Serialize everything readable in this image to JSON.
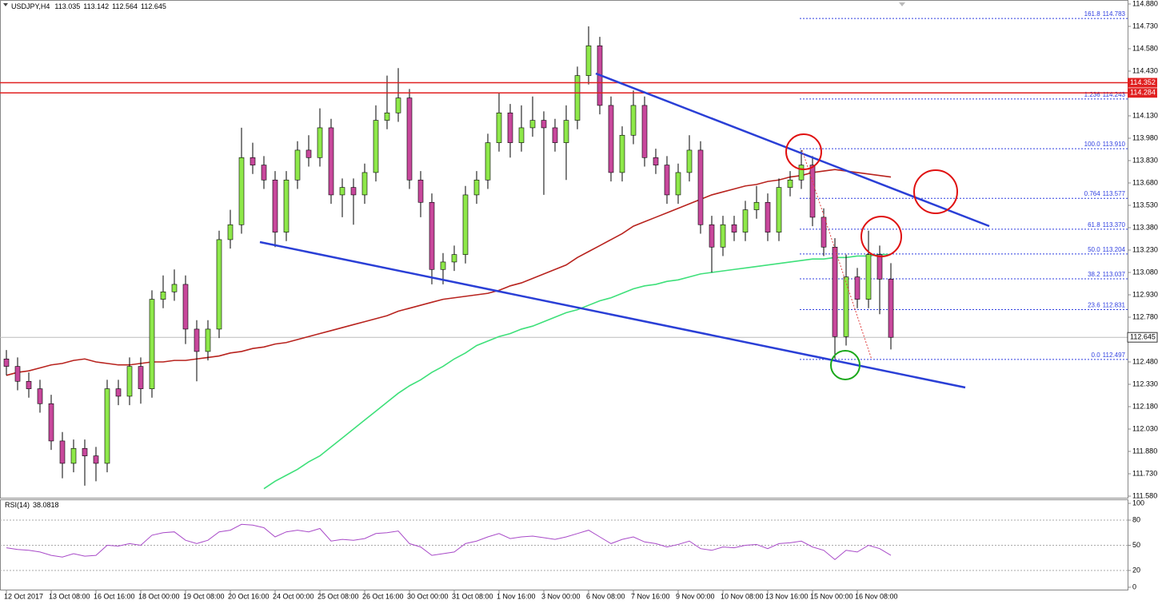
{
  "chart_data": [
    {
      "type": "candlestick",
      "symbol": "USDJPY,H4",
      "categories": [
        "12 Oct 2017",
        null,
        null,
        null,
        "13 Oct 08:00",
        null,
        null,
        null,
        "16 Oct 16:00",
        null,
        null,
        null,
        "18 Oct 00:00",
        null,
        null,
        null,
        "19 Oct 08:00",
        null,
        null,
        null,
        "20 Oct 16:00",
        null,
        null,
        null,
        "24 Oct 00:00",
        null,
        null,
        null,
        "25 Oct 08:00",
        null,
        null,
        null,
        "26 Oct 16:00",
        null,
        null,
        null,
        "30 Oct 00:00",
        null,
        null,
        null,
        "31 Oct 08:00",
        null,
        null,
        null,
        "1 Nov 16:00",
        null,
        null,
        null,
        "3 Nov 00:00",
        null,
        null,
        null,
        "6 Nov 08:00",
        null,
        null,
        null,
        "7 Nov 16:00",
        null,
        null,
        null,
        "9 Nov 00:00",
        null,
        null,
        null,
        "10 Nov 08:00",
        null,
        null,
        null,
        "13 Nov 16:00",
        null,
        null,
        null,
        "15 Nov 00:00",
        null,
        null,
        null,
        "16 Nov 08:00",
        null,
        null,
        null
      ],
      "ohlc": [
        [
          112.5,
          112.56,
          112.39,
          112.45
        ],
        [
          112.45,
          112.51,
          112.29,
          112.35
        ],
        [
          112.35,
          112.41,
          112.24,
          112.3
        ],
        [
          112.3,
          112.36,
          112.14,
          112.2
        ],
        [
          112.2,
          112.26,
          111.89,
          111.95
        ],
        [
          111.95,
          112.01,
          111.7,
          111.8
        ],
        [
          111.8,
          111.96,
          111.74,
          111.9
        ],
        [
          111.9,
          111.96,
          111.65,
          111.85
        ],
        [
          111.85,
          111.91,
          111.68,
          111.8
        ],
        [
          111.8,
          112.36,
          111.74,
          112.3
        ],
        [
          112.3,
          112.36,
          112.19,
          112.25
        ],
        [
          112.25,
          112.51,
          112.19,
          112.45
        ],
        [
          112.45,
          112.51,
          112.2,
          112.3
        ],
        [
          112.3,
          112.96,
          112.24,
          112.9
        ],
        [
          112.9,
          113.06,
          112.84,
          112.95
        ],
        [
          112.95,
          113.1,
          112.89,
          113.0
        ],
        [
          113.0,
          113.06,
          112.6,
          112.7
        ],
        [
          112.7,
          112.76,
          112.35,
          112.55
        ],
        [
          112.55,
          112.76,
          112.49,
          112.7
        ],
        [
          112.7,
          113.36,
          112.64,
          113.3
        ],
        [
          113.3,
          113.5,
          113.24,
          113.4
        ],
        [
          113.4,
          114.05,
          113.34,
          113.85
        ],
        [
          113.85,
          113.95,
          113.74,
          113.8
        ],
        [
          113.8,
          113.86,
          113.64,
          113.7
        ],
        [
          113.7,
          113.76,
          113.25,
          113.35
        ],
        [
          113.35,
          113.76,
          113.29,
          113.7
        ],
        [
          113.7,
          113.96,
          113.64,
          113.9
        ],
        [
          113.9,
          114.0,
          113.79,
          113.85
        ],
        [
          113.85,
          114.18,
          113.79,
          114.05
        ],
        [
          114.05,
          114.11,
          113.54,
          113.6
        ],
        [
          113.6,
          113.71,
          113.45,
          113.65
        ],
        [
          113.65,
          113.71,
          113.4,
          113.6
        ],
        [
          113.6,
          113.81,
          113.54,
          113.75
        ],
        [
          113.75,
          114.2,
          113.69,
          114.1
        ],
        [
          114.1,
          114.4,
          114.04,
          114.15
        ],
        [
          114.15,
          114.45,
          114.09,
          114.25
        ],
        [
          114.25,
          114.31,
          113.64,
          113.7
        ],
        [
          113.7,
          113.76,
          113.45,
          113.55
        ],
        [
          113.55,
          113.61,
          113.0,
          113.1
        ],
        [
          113.1,
          113.21,
          113.0,
          113.15
        ],
        [
          113.15,
          113.26,
          113.09,
          113.2
        ],
        [
          113.2,
          113.66,
          113.14,
          113.6
        ],
        [
          113.6,
          113.76,
          113.54,
          113.7
        ],
        [
          113.7,
          114.01,
          113.64,
          113.95
        ],
        [
          113.95,
          114.28,
          113.89,
          114.15
        ],
        [
          114.15,
          114.21,
          113.85,
          113.95
        ],
        [
          113.95,
          114.2,
          113.89,
          114.05
        ],
        [
          114.05,
          114.26,
          113.99,
          114.1
        ],
        [
          114.1,
          114.16,
          113.6,
          114.05
        ],
        [
          114.05,
          114.11,
          113.89,
          113.95
        ],
        [
          113.95,
          114.2,
          113.7,
          114.1
        ],
        [
          114.1,
          114.46,
          114.04,
          114.4
        ],
        [
          114.4,
          114.73,
          114.34,
          114.6
        ],
        [
          114.6,
          114.66,
          114.14,
          114.2
        ],
        [
          114.2,
          114.26,
          113.69,
          113.75
        ],
        [
          113.75,
          114.06,
          113.69,
          114.0
        ],
        [
          114.0,
          114.3,
          113.94,
          114.2
        ],
        [
          114.2,
          114.26,
          113.79,
          113.85
        ],
        [
          113.85,
          113.91,
          113.74,
          113.8
        ],
        [
          113.8,
          113.86,
          113.54,
          113.6
        ],
        [
          113.6,
          113.81,
          113.54,
          113.75
        ],
        [
          113.75,
          114.0,
          113.69,
          113.9
        ],
        [
          113.9,
          113.96,
          113.34,
          113.4
        ],
        [
          113.4,
          113.46,
          113.08,
          113.25
        ],
        [
          113.25,
          113.46,
          113.19,
          113.4
        ],
        [
          113.4,
          113.46,
          113.29,
          113.35
        ],
        [
          113.35,
          113.56,
          113.29,
          113.5
        ],
        [
          113.5,
          113.66,
          113.44,
          113.55
        ],
        [
          113.55,
          113.61,
          113.29,
          113.35
        ],
        [
          113.35,
          113.71,
          113.29,
          113.65
        ],
        [
          113.65,
          113.76,
          113.59,
          113.7
        ],
        [
          113.7,
          113.9,
          113.64,
          113.8
        ],
        [
          113.8,
          113.86,
          113.39,
          113.45
        ],
        [
          113.45,
          113.51,
          113.19,
          113.25
        ],
        [
          113.25,
          113.31,
          112.5,
          112.65
        ],
        [
          112.65,
          113.2,
          112.59,
          113.05
        ],
        [
          113.05,
          113.11,
          112.84,
          112.9
        ],
        [
          112.9,
          113.36,
          112.84,
          113.2
        ],
        [
          113.2,
          113.26,
          112.8,
          113.035
        ],
        [
          113.035,
          113.142,
          112.564,
          112.645
        ]
      ],
      "up_color": "#8ee84a",
      "down_color": "#c8489c",
      "series": [
        {
          "color": "#b8231e",
          "values": [
            112.39,
            112.41,
            112.42,
            112.44,
            112.46,
            112.47,
            112.49,
            112.5,
            112.48,
            112.47,
            112.46,
            112.46,
            112.47,
            112.48,
            112.48,
            112.49,
            112.49,
            112.5,
            112.51,
            112.52,
            112.54,
            112.55,
            112.57,
            112.58,
            112.6,
            112.61,
            112.63,
            112.65,
            112.67,
            112.69,
            112.71,
            112.73,
            112.75,
            112.77,
            112.79,
            112.82,
            112.84,
            112.86,
            112.88,
            112.9,
            112.91,
            112.92,
            112.93,
            112.94,
            112.96,
            112.99,
            113.01,
            113.04,
            113.07,
            113.1,
            113.13,
            113.18,
            113.22,
            113.26,
            113.3,
            113.34,
            113.39,
            113.42,
            113.45,
            113.48,
            113.51,
            113.54,
            113.57,
            113.6,
            113.62,
            113.64,
            113.66,
            113.67,
            113.69,
            113.7,
            113.72,
            113.73,
            113.75,
            113.76,
            113.77,
            113.76,
            113.75,
            113.74,
            113.73,
            113.72
          ]
        },
        {
          "color": "#3ee07a",
          "values": [
            null,
            null,
            null,
            null,
            null,
            null,
            null,
            null,
            null,
            null,
            null,
            null,
            null,
            null,
            null,
            null,
            null,
            null,
            null,
            null,
            null,
            null,
            null,
            111.63,
            111.68,
            111.72,
            111.76,
            111.81,
            111.85,
            111.91,
            111.97,
            112.03,
            112.09,
            112.15,
            112.21,
            112.27,
            112.32,
            112.36,
            112.41,
            112.45,
            112.5,
            112.54,
            112.59,
            112.62,
            112.65,
            112.67,
            112.7,
            112.72,
            112.75,
            112.78,
            112.81,
            112.83,
            112.86,
            112.89,
            112.91,
            112.94,
            112.97,
            112.99,
            113.0,
            113.02,
            113.03,
            113.05,
            113.07,
            113.08,
            113.09,
            113.1,
            113.11,
            113.12,
            113.13,
            113.14,
            113.15,
            113.16,
            113.17,
            113.17,
            113.18,
            113.18,
            113.19,
            113.19,
            113.2,
            113.2
          ]
        }
      ],
      "ylim": [
        111.58,
        114.88
      ],
      "yticks": [
        {
          "value": 114.88,
          "label": "114.880"
        },
        {
          "value": 114.73,
          "label": "114.730"
        },
        {
          "value": 114.58,
          "label": "114.580"
        },
        {
          "value": 114.43,
          "label": "114.430"
        },
        {
          "value": 114.13,
          "label": "114.130"
        },
        {
          "value": 113.98,
          "label": "113.980"
        },
        {
          "value": 113.83,
          "label": "113.830"
        },
        {
          "value": 113.68,
          "label": "113.680"
        },
        {
          "value": 113.53,
          "label": "113.530"
        },
        {
          "value": 113.38,
          "label": "113.380"
        },
        {
          "value": 113.23,
          "label": "113.230"
        },
        {
          "value": 113.08,
          "label": "113.080"
        },
        {
          "value": 112.93,
          "label": "112.930"
        },
        {
          "value": 112.78,
          "label": "112.780"
        },
        {
          "value": 112.48,
          "label": "112.480"
        },
        {
          "value": 112.33,
          "label": "112.330"
        },
        {
          "value": 112.18,
          "label": "112.180"
        },
        {
          "value": 112.03,
          "label": "112.030"
        },
        {
          "value": 111.88,
          "label": "111.880"
        },
        {
          "value": 111.73,
          "label": "111.730"
        },
        {
          "value": 111.58,
          "label": "111.580"
        }
      ],
      "hlines": [
        114.352,
        114.284
      ],
      "hline_color": "#e02020",
      "price_line": 112.645,
      "fib_color": "#2f3fe0",
      "fib": [
        {
          "level": "161.8",
          "price": {
            "value": 114.783,
            "label": "114.783"
          }
        },
        {
          "level": "1.236",
          "price": {
            "value": 114.243,
            "label": "114.243"
          }
        },
        {
          "level": "100.0",
          "price": {
            "value": 113.91,
            "label": "113.910"
          }
        },
        {
          "level": "0.764",
          "price": {
            "value": 113.577,
            "label": "113.577"
          }
        },
        {
          "level": "61.8",
          "price": {
            "value": 113.37,
            "label": "113.370"
          }
        },
        {
          "level": "50.0",
          "price": {
            "value": 113.204,
            "label": "113.204"
          }
        },
        {
          "level": "38.2",
          "price": {
            "value": 113.037,
            "label": "113.037"
          }
        },
        {
          "level": "23.6",
          "price": {
            "value": 112.831,
            "label": "112.831"
          }
        },
        {
          "level": "0.0",
          "price": {
            "value": 112.497,
            "label": "112.497"
          }
        }
      ]
    },
    {
      "type": "line",
      "title": "RSI(14)",
      "series": [
        {
          "color": "#a84ac8",
          "values": [
            47,
            45,
            44,
            42,
            38,
            36,
            40,
            37,
            38,
            50,
            49,
            52,
            50,
            62,
            65,
            66,
            56,
            52,
            56,
            66,
            68,
            75,
            74,
            71,
            60,
            66,
            68,
            66,
            70,
            55,
            57,
            56,
            58,
            64,
            65,
            67,
            52,
            48,
            38,
            40,
            42,
            52,
            55,
            60,
            64,
            58,
            60,
            61,
            59,
            57,
            60,
            64,
            68,
            60,
            52,
            57,
            60,
            54,
            52,
            48,
            51,
            55,
            46,
            44,
            48,
            47,
            50,
            51,
            46,
            52,
            53,
            55,
            48,
            44,
            33,
            44,
            42,
            50,
            46,
            38.0818
          ]
        }
      ],
      "ylim": [
        0,
        100
      ],
      "yticks": [
        100,
        80,
        50,
        20,
        0
      ],
      "grid": true
    }
  ]
}
